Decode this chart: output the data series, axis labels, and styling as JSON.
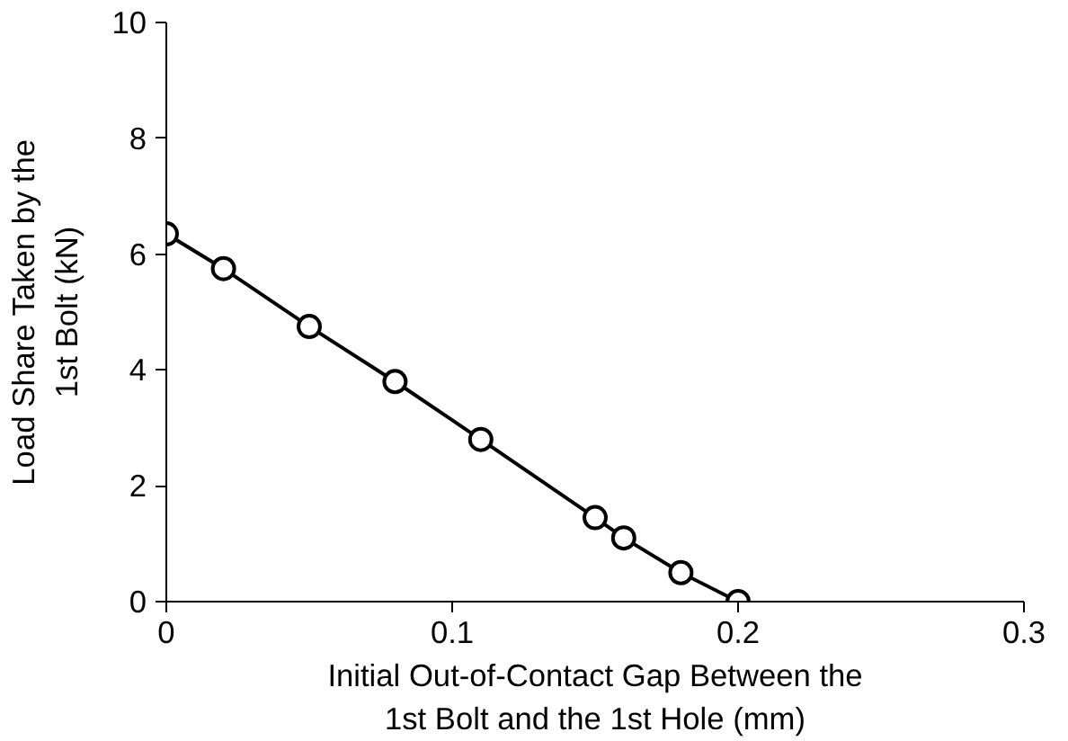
{
  "chart_data": {
    "type": "line",
    "xlabel": "Initial Out-of-Contact Gap Between the\n1st Bolt and the 1st Hole (mm)",
    "ylabel": "Load Share Taken by the\n1st Bolt (kN)",
    "x": [
      0,
      0.02,
      0.05,
      0.08,
      0.11,
      0.15,
      0.16,
      0.18,
      0.2
    ],
    "series": [
      {
        "color": "#000000",
        "values": [
          6.35,
          5.75,
          4.75,
          3.8,
          2.8,
          1.45,
          1.1,
          0.5,
          0
        ]
      }
    ],
    "xlim": [
      0,
      0.3
    ],
    "ylim": [
      0,
      10
    ],
    "xticks": [
      0,
      0.1,
      0.2,
      0.3
    ],
    "yticks": [
      0,
      2,
      4,
      6,
      8,
      10
    ],
    "marker": "circle",
    "line_style": "solid",
    "grid": false
  }
}
